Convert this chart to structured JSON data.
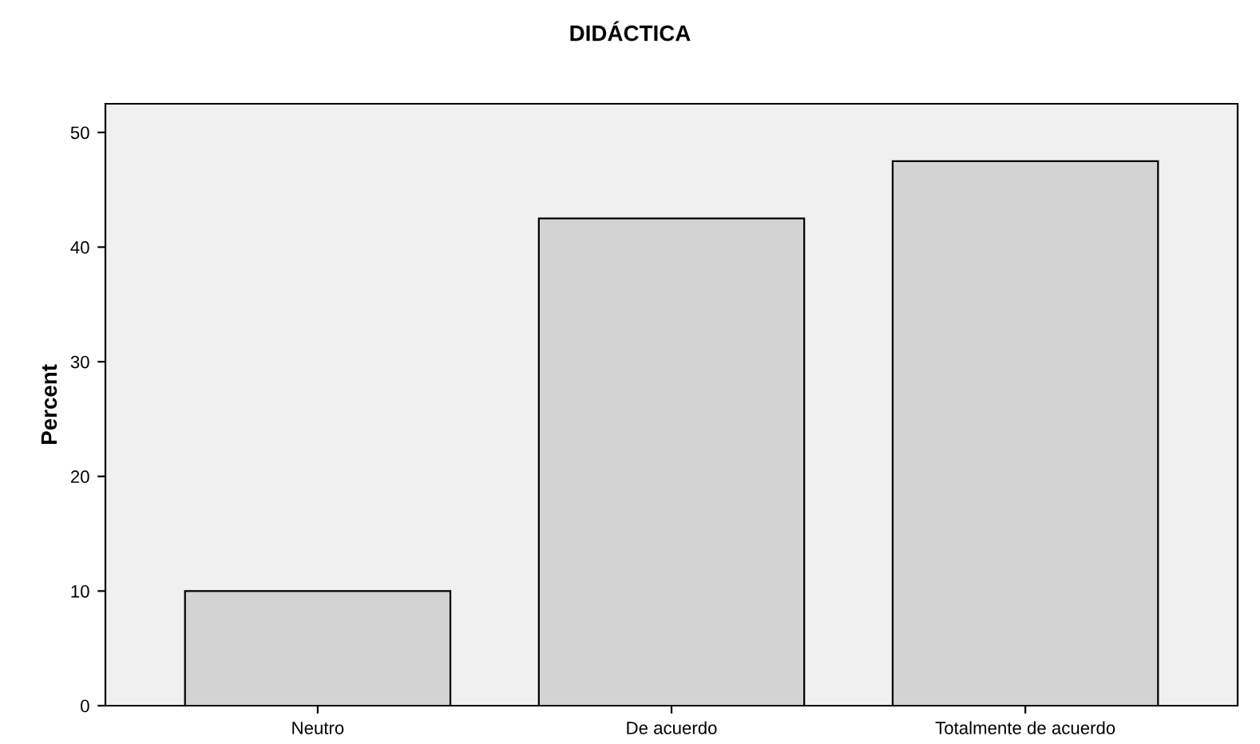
{
  "chart_data": {
    "type": "bar",
    "title": "DIDÁCTICA",
    "ylabel": "Percent",
    "categories": [
      "Neutro",
      "De acuerdo",
      "Totalmente de acuerdo"
    ],
    "values": [
      10,
      42.5,
      47.5
    ],
    "color": "#d3d3d3",
    "ylim": [
      0,
      52.5
    ],
    "yticks": [
      0,
      10,
      20,
      30,
      40,
      50
    ],
    "grid": false
  }
}
